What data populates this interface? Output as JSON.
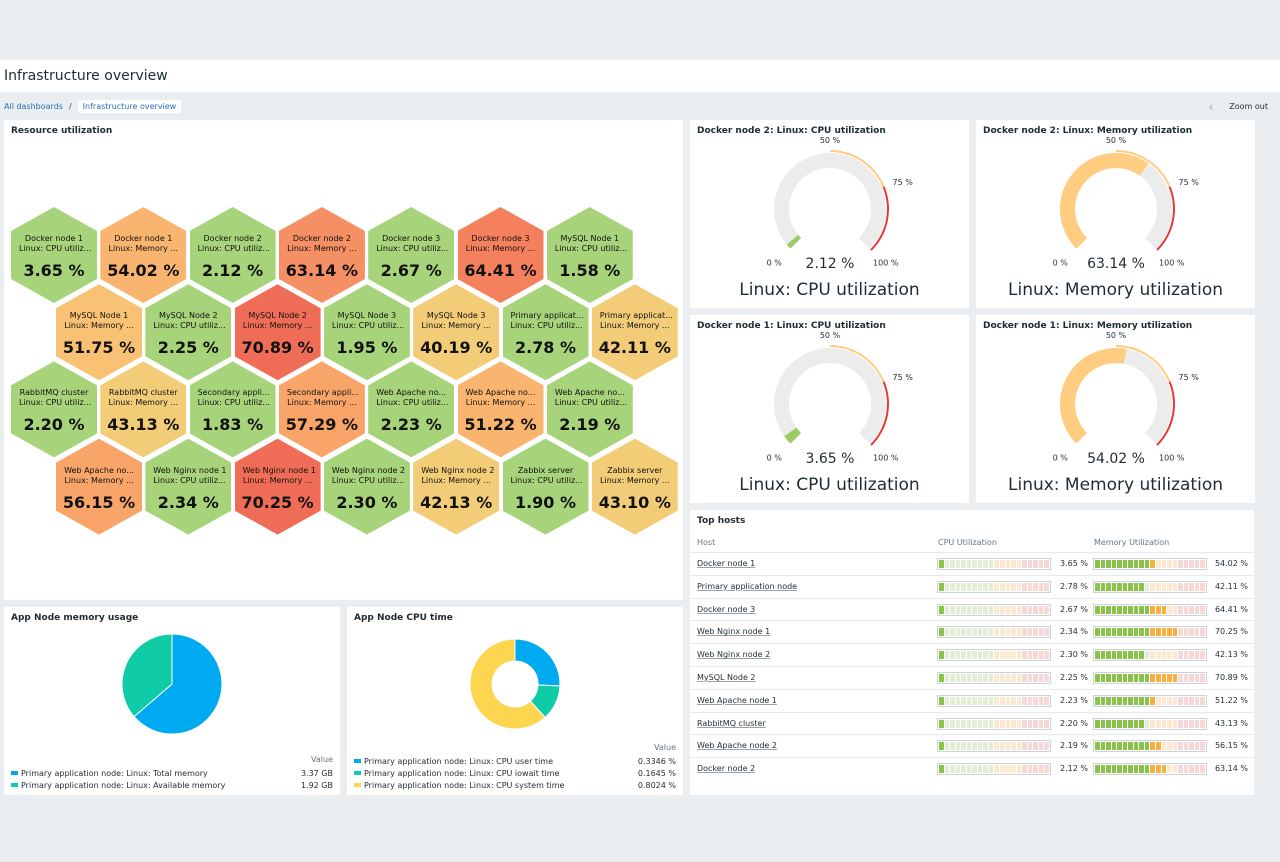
{
  "page": {
    "title": "Infrastructure overview"
  },
  "breadcrumbs": {
    "all": "All dashboards",
    "separator": "/",
    "current": "Infrastructure overview"
  },
  "toolbar": {
    "prev_icon": "chevron-left-icon",
    "zoom_out": "Zoom out"
  },
  "honeycomb": {
    "title": "Resource utilization",
    "cells": [
      {
        "host": "Docker node 1",
        "item": "Linux: CPU utiliz...",
        "value": "3.65 %",
        "color": "#a7d37b"
      },
      {
        "host": "Docker node 1",
        "item": "Linux: Memory ...",
        "value": "54.02 %",
        "color": "#f9b570"
      },
      {
        "host": "Docker node 2",
        "item": "Linux: CPU utiliz...",
        "value": "2.12 %",
        "color": "#a7d37b"
      },
      {
        "host": "Docker node 2",
        "item": "Linux: Memory ...",
        "value": "63.14 %",
        "color": "#f58f64"
      },
      {
        "host": "Docker node 3",
        "item": "Linux: CPU utiliz...",
        "value": "2.67 %",
        "color": "#a7d37b"
      },
      {
        "host": "Docker node 3",
        "item": "Linux: Memory ...",
        "value": "64.41 %",
        "color": "#f4805d"
      },
      {
        "host": "MySQL Node 1",
        "item": "Linux: CPU utiliz...",
        "value": "1.58 %",
        "color": "#a7d37b"
      },
      {
        "host": "MySQL Node 1",
        "item": "Linux: Memory ...",
        "value": "51.75 %",
        "color": "#f9c173"
      },
      {
        "host": "MySQL Node 2",
        "item": "Linux: CPU utiliz...",
        "value": "2.25 %",
        "color": "#a7d37b"
      },
      {
        "host": "MySQL Node 2",
        "item": "Linux: Memory ...",
        "value": "70.89 %",
        "color": "#ef6d56"
      },
      {
        "host": "MySQL Node 3",
        "item": "Linux: CPU utiliz...",
        "value": "1.95 %",
        "color": "#a7d37b"
      },
      {
        "host": "MySQL Node 3",
        "item": "Linux: Memory ...",
        "value": "40.19 %",
        "color": "#f3cc78"
      },
      {
        "host": "Primary applicat...",
        "item": "Linux: CPU utiliz...",
        "value": "2.78 %",
        "color": "#a7d37b"
      },
      {
        "host": "Primary applicat...",
        "item": "Linux: Memory ...",
        "value": "42.11 %",
        "color": "#f3cc78"
      },
      {
        "host": "RabbitMQ cluster",
        "item": "Linux: CPU utiliz...",
        "value": "2.20 %",
        "color": "#a7d37b"
      },
      {
        "host": "RabbitMQ cluster",
        "item": "Linux: Memory ...",
        "value": "43.13 %",
        "color": "#f3cc78"
      },
      {
        "host": "Secondary appli...",
        "item": "Linux: CPU utiliz...",
        "value": "1.83 %",
        "color": "#a7d37b"
      },
      {
        "host": "Secondary appli...",
        "item": "Linux: Memory ...",
        "value": "57.29 %",
        "color": "#f9a56a"
      },
      {
        "host": "Web Apache no...",
        "item": "Linux: CPU utiliz...",
        "value": "2.23 %",
        "color": "#a7d37b"
      },
      {
        "host": "Web Apache no...",
        "item": "Linux: Memory ...",
        "value": "51.22 %",
        "color": "#f9b570"
      },
      {
        "host": "Web Apache no...",
        "item": "Linux: CPU utiliz...",
        "value": "2.19 %",
        "color": "#a7d37b"
      },
      {
        "host": "Web Apache no...",
        "item": "Linux: Memory ...",
        "value": "56.15 %",
        "color": "#f9a56a"
      },
      {
        "host": "Web Nginx node 1",
        "item": "Linux: CPU utiliz...",
        "value": "2.34 %",
        "color": "#a7d37b"
      },
      {
        "host": "Web Nginx node 1",
        "item": "Linux: Memory ...",
        "value": "70.25 %",
        "color": "#ef6d56"
      },
      {
        "host": "Web Nginx node 2",
        "item": "Linux: CPU utiliz...",
        "value": "2.30 %",
        "color": "#a7d37b"
      },
      {
        "host": "Web Nginx node 2",
        "item": "Linux: Memory ...",
        "value": "42.13 %",
        "color": "#f3cc78"
      },
      {
        "host": "Zabbix server",
        "item": "Linux: CPU utiliz...",
        "value": "1.90 %",
        "color": "#a7d37b"
      },
      {
        "host": "Zabbix server",
        "item": "Linux: Memory ...",
        "value": "43.10 %",
        "color": "#f3cc78"
      }
    ]
  },
  "gauges": [
    {
      "title": "Docker node 2: Linux: CPU utilization",
      "value": 2.12,
      "value_text": "2.12 %",
      "label": "Linux: CPU utilization",
      "color": "#9ccc65"
    },
    {
      "title": "Docker node 2: Linux: Memory utilization",
      "value": 63.14,
      "value_text": "63.14 %",
      "label": "Linux: Memory utilization",
      "color": "#ffcc80"
    },
    {
      "title": "Docker node 1: Linux: CPU utilization",
      "value": 3.65,
      "value_text": "3.65 %",
      "label": "Linux: CPU utilization",
      "color": "#9ccc65"
    },
    {
      "title": "Docker node 1: Linux: Memory utilization",
      "value": 54.02,
      "value_text": "54.02 %",
      "label": "Linux: Memory utilization",
      "color": "#ffcc80"
    }
  ],
  "gauge_scale": {
    "min": "0 %",
    "mid": "50 %",
    "warn": "75 %",
    "max": "100 %",
    "warn_color": "#ffcc80",
    "crit_color": "#e53935"
  },
  "memory_pie": {
    "title": "App Node memory usage",
    "value_header": "Value",
    "chart_data": {
      "type": "pie",
      "slices": [
        {
          "label": "Primary application node: Linux: Total memory",
          "value": 3.37,
          "display": "3.37 GB",
          "color": "#00aaf0"
        },
        {
          "label": "Primary application node: Linux: Available memory",
          "value": 1.92,
          "display": "1.92 GB",
          "color": "#0fcca6"
        }
      ]
    }
  },
  "cpu_pie": {
    "title": "App Node CPU time",
    "value_header": "Value",
    "chart_data": {
      "type": "pie",
      "donut": true,
      "slices": [
        {
          "label": "Primary application node: Linux: CPU user time",
          "value": 0.3346,
          "display": "0.3346 %",
          "color": "#00aaf0"
        },
        {
          "label": "Primary application node: Linux: CPU iowait time",
          "value": 0.1645,
          "display": "0.1645 %",
          "color": "#0fcca6"
        },
        {
          "label": "Primary application node: Linux: CPU system time",
          "value": 0.8024,
          "display": "0.8024 %",
          "color": "#fdd54f"
        }
      ]
    }
  },
  "top_hosts": {
    "title": "Top hosts",
    "columns": {
      "host": "Host",
      "cpu": "CPU Utilization",
      "mem": "Memory Utilization"
    },
    "rows": [
      {
        "host": "Docker node 1",
        "cpu": 3.65,
        "cpu_text": "3.65 %",
        "mem": 54.02,
        "mem_text": "54.02 %"
      },
      {
        "host": "Primary application node",
        "cpu": 2.78,
        "cpu_text": "2.78 %",
        "mem": 42.11,
        "mem_text": "42.11 %"
      },
      {
        "host": "Docker node 3",
        "cpu": 2.67,
        "cpu_text": "2.67 %",
        "mem": 64.41,
        "mem_text": "64.41 %"
      },
      {
        "host": "Web Nginx node 1",
        "cpu": 2.34,
        "cpu_text": "2.34 %",
        "mem": 70.25,
        "mem_text": "70.25 %"
      },
      {
        "host": "Web Nginx node 2",
        "cpu": 2.3,
        "cpu_text": "2.30 %",
        "mem": 42.13,
        "mem_text": "42.13 %"
      },
      {
        "host": "MySQL Node 2",
        "cpu": 2.25,
        "cpu_text": "2.25 %",
        "mem": 70.89,
        "mem_text": "70.89 %"
      },
      {
        "host": "Web Apache node 1",
        "cpu": 2.23,
        "cpu_text": "2.23 %",
        "mem": 51.22,
        "mem_text": "51.22 %"
      },
      {
        "host": "RabbitMQ cluster",
        "cpu": 2.2,
        "cpu_text": "2.20 %",
        "mem": 43.13,
        "mem_text": "43.13 %"
      },
      {
        "host": "Web Apache node 2",
        "cpu": 2.19,
        "cpu_text": "2.19 %",
        "mem": 56.15,
        "mem_text": "56.15 %"
      },
      {
        "host": "Docker node 2",
        "cpu": 2.12,
        "cpu_text": "2.12 %",
        "mem": 63.14,
        "mem_text": "63.14 %"
      }
    ]
  }
}
